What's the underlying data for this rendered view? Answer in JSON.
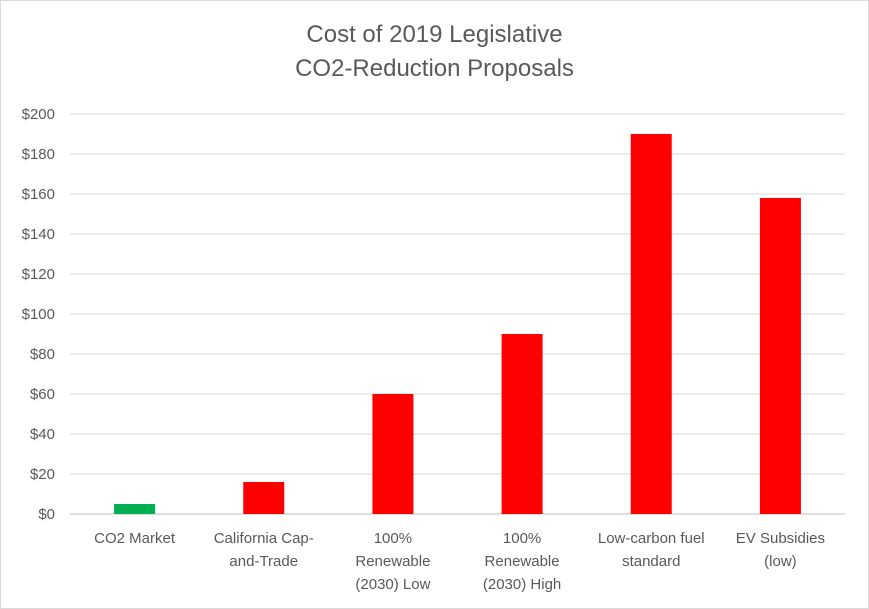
{
  "chart_data": {
    "type": "bar",
    "title_lines": [
      "Cost of 2019 Legislative",
      "CO2-Reduction Proposals"
    ],
    "categories": [
      [
        "CO2 Market"
      ],
      [
        "California Cap-",
        "and-Trade"
      ],
      [
        "100%",
        "Renewable",
        "(2030) Low"
      ],
      [
        "100%",
        "Renewable",
        "(2030) High"
      ],
      [
        "Low-carbon fuel",
        "standard"
      ],
      [
        "EV Subsidies",
        "(low)"
      ]
    ],
    "values": [
      5,
      16,
      60,
      90,
      190,
      158
    ],
    "colors": [
      "#00b050",
      "#ff0000",
      "#ff0000",
      "#ff0000",
      "#ff0000",
      "#ff0000"
    ],
    "ylim": [
      0,
      200
    ],
    "ytick_step": 20,
    "ytick_labels": [
      "$0",
      "$20",
      "$40",
      "$60",
      "$80",
      "$100",
      "$120",
      "$140",
      "$160",
      "$180",
      "$200"
    ],
    "grid": true,
    "legend": "none",
    "xlabel": "",
    "ylabel": ""
  }
}
